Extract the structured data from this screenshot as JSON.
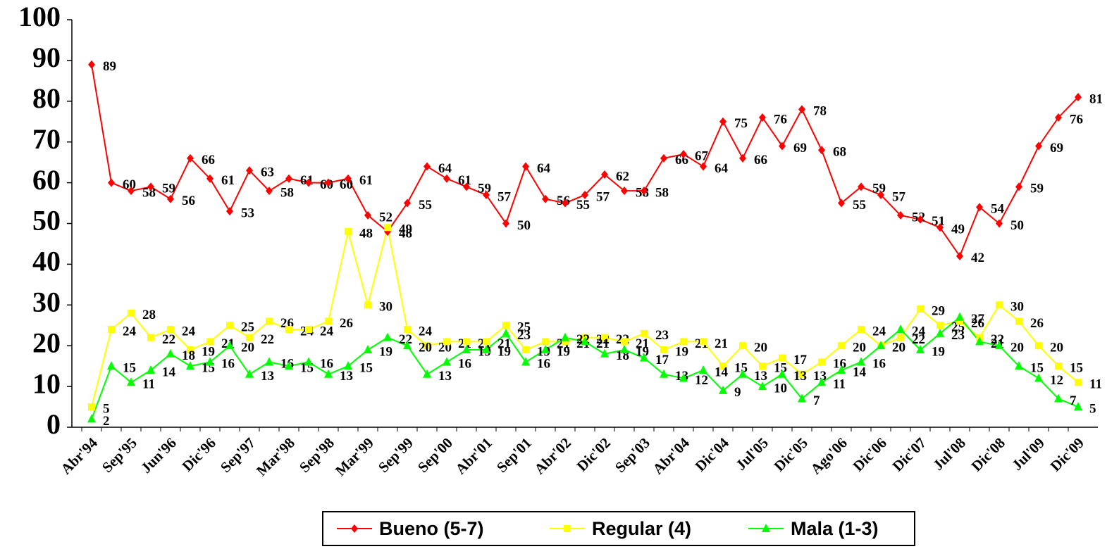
{
  "chart_data": {
    "type": "line",
    "categories": [
      "Abr'94",
      null,
      "Sep'95",
      null,
      "Jun'96",
      null,
      "Dic'96",
      null,
      "Sep'97",
      null,
      "Mar'98",
      null,
      "Sep'98",
      null,
      "Mar'99",
      null,
      "Sep'99",
      null,
      "Sep'00",
      null,
      "Abr'01",
      null,
      "Sep'01",
      null,
      "Abr'02",
      null,
      "Dic'02",
      null,
      "Sep'03",
      null,
      "Abr'04",
      null,
      "Dic'04",
      null,
      "Jul'05",
      null,
      "Dic'05",
      null,
      "Ago'06",
      null,
      "Dic'06",
      null,
      "Dic'07",
      null,
      "Jul'08",
      null,
      "Dic'08",
      null,
      "Jul'09",
      null,
      "Dic'09"
    ],
    "series": [
      {
        "name": "Bueno (5-7)",
        "color": "#ff0000",
        "marker": "diamond",
        "values": [
          89,
          60,
          58,
          59,
          56,
          66,
          61,
          53,
          63,
          58,
          61,
          60,
          60,
          61,
          52,
          48,
          55,
          64,
          61,
          59,
          57,
          50,
          64,
          56,
          55,
          57,
          62,
          58,
          58,
          66,
          67,
          64,
          75,
          66,
          76,
          69,
          78,
          68,
          55,
          59,
          57,
          52,
          51,
          49,
          42,
          54,
          50,
          59,
          69,
          76,
          81
        ]
      },
      {
        "name": "Regular (4)",
        "color": "#ffff00",
        "marker": "square",
        "values": [
          5,
          24,
          28,
          22,
          24,
          19,
          21,
          25,
          22,
          26,
          24,
          24,
          26,
          48,
          30,
          49,
          24,
          20,
          21,
          21,
          21,
          25,
          19,
          21,
          21,
          22,
          22,
          21,
          23,
          19,
          21,
          21,
          15,
          20,
          15,
          17,
          13,
          16,
          20,
          24,
          20,
          22,
          29,
          25,
          26,
          22,
          30,
          26,
          20,
          15,
          11
        ]
      },
      {
        "name": "Mala (1-3)",
        "color": "#00ff00",
        "marker": "triangle",
        "values": [
          2,
          15,
          11,
          14,
          18,
          15,
          16,
          20,
          13,
          16,
          15,
          16,
          13,
          15,
          19,
          22,
          20,
          13,
          16,
          19,
          19,
          23,
          16,
          19,
          22,
          21,
          18,
          19,
          17,
          13,
          12,
          14,
          9,
          13,
          10,
          13,
          7,
          11,
          14,
          16,
          20,
          24,
          19,
          23,
          27,
          21,
          20,
          15,
          12,
          7,
          5
        ]
      }
    ],
    "ylim": [
      0,
      100
    ],
    "yticks": [
      0,
      10,
      20,
      30,
      40,
      50,
      60,
      70,
      80,
      90,
      100
    ],
    "legend": "bottom"
  }
}
